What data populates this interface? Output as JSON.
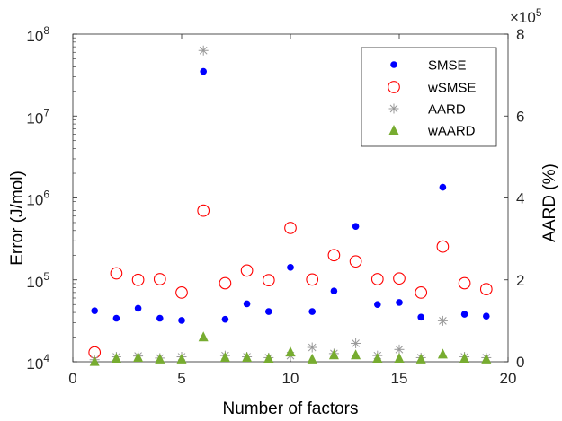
{
  "chart_data": {
    "type": "scatter",
    "xlabel": "Number of factors",
    "ylabel_left": "Error (J/mol)",
    "ylabel_right": "AARD (%)",
    "right_multiplier": "×10",
    "right_multiplier_exp": "5",
    "xlim": [
      0,
      20
    ],
    "ylim_left": [
      10000,
      100000000
    ],
    "ylim_left_scale": "log",
    "ylim_right": [
      0,
      8
    ],
    "ylim_right_display_unit": "×10^5 %",
    "x_ticks": [
      "0",
      "5",
      "10",
      "15",
      "20"
    ],
    "y_left_ticks": [
      {
        "base": "10",
        "exp": "4",
        "value": 10000
      },
      {
        "base": "10",
        "exp": "5",
        "value": 100000
      },
      {
        "base": "10",
        "exp": "6",
        "value": 1000000
      },
      {
        "base": "10",
        "exp": "7",
        "value": 10000000
      },
      {
        "base": "10",
        "exp": "8",
        "value": 100000000
      }
    ],
    "y_right_ticks": [
      "0",
      "2",
      "4",
      "6",
      "8"
    ],
    "legend_position": "top-right",
    "grid": false,
    "series": [
      {
        "name": "SMSE",
        "axis": "left",
        "marker": "filled-circle",
        "color": "#0000ff",
        "x": [
          1,
          2,
          3,
          4,
          5,
          6,
          7,
          8,
          9,
          10,
          11,
          12,
          13,
          14,
          15,
          16,
          17,
          18,
          19
        ],
        "y": [
          42000,
          34000,
          45000,
          34000,
          32000,
          35000000,
          33000,
          51000,
          41000,
          142000,
          41000,
          73000,
          450000,
          50000,
          53000,
          35000,
          1350000,
          38000,
          36000
        ]
      },
      {
        "name": "wSMSE",
        "axis": "left",
        "marker": "open-circle",
        "color": "#ff0000",
        "x": [
          1,
          2,
          3,
          4,
          5,
          6,
          7,
          8,
          9,
          10,
          11,
          12,
          13,
          14,
          15,
          16,
          17,
          18,
          19
        ],
        "y": [
          13000,
          120000,
          100000,
          102000,
          70000,
          700000,
          91000,
          130000,
          99000,
          430000,
          101000,
          200000,
          168000,
          102000,
          104000,
          70000,
          255000,
          91000,
          77000
        ]
      },
      {
        "name": "AARD",
        "axis": "right",
        "marker": "asterisk",
        "color": "#999999",
        "x": [
          1,
          2,
          3,
          4,
          5,
          6,
          7,
          8,
          9,
          10,
          11,
          12,
          13,
          14,
          15,
          16,
          17,
          18,
          19
        ],
        "y": [
          0.05,
          0.12,
          0.14,
          0.09,
          0.12,
          7.6,
          0.15,
          0.12,
          0.1,
          0.15,
          0.35,
          0.2,
          0.45,
          0.15,
          0.3,
          0.1,
          1.0,
          0.12,
          0.1
        ]
      },
      {
        "name": "wAARD",
        "axis": "right",
        "marker": "filled-triangle",
        "color": "#77ac30",
        "x": [
          1,
          2,
          3,
          4,
          5,
          6,
          7,
          8,
          9,
          10,
          11,
          12,
          13,
          14,
          15,
          16,
          17,
          18,
          19
        ],
        "y": [
          0.02,
          0.1,
          0.12,
          0.08,
          0.08,
          0.62,
          0.12,
          0.12,
          0.1,
          0.25,
          0.08,
          0.18,
          0.18,
          0.1,
          0.1,
          0.08,
          0.2,
          0.1,
          0.08
        ]
      }
    ]
  }
}
